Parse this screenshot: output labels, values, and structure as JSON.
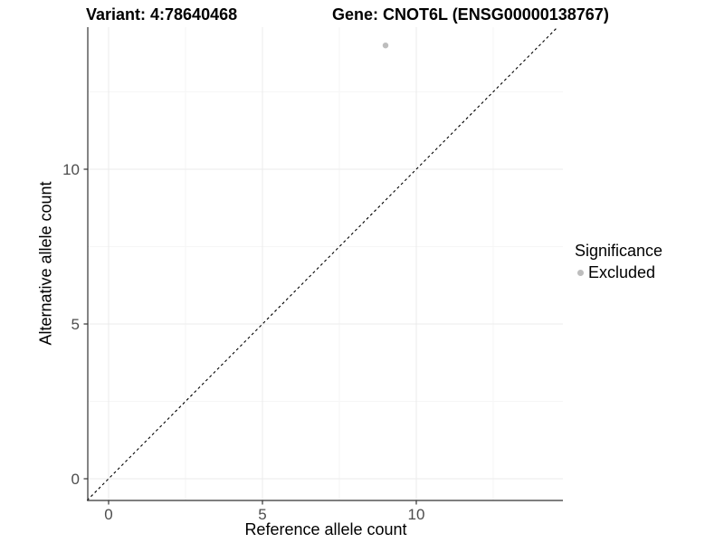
{
  "chart_data": {
    "type": "scatter",
    "title_left": "Variant: 4:78640468",
    "title_right": "Gene: CNOT6L (ENSG00000138767)",
    "xlabel": "Reference allele count",
    "ylabel": "Alternative allele count",
    "points": [
      {
        "x": 9,
        "y": 14,
        "significance": "Excluded"
      }
    ],
    "x_ticks": [
      0,
      5,
      10
    ],
    "y_ticks": [
      0,
      5,
      10
    ],
    "x_minor_ticks": [
      2.5,
      7.5,
      12.5
    ],
    "y_minor_ticks": [
      2.5,
      7.5,
      12.5
    ],
    "xlim": [
      -0.7,
      14.75
    ],
    "ylim": [
      -0.7,
      14.6
    ],
    "grid": true,
    "reference_line": {
      "type": "identity",
      "style": "dashed",
      "color": "#000000"
    },
    "legend": {
      "position": "right",
      "title": "Significance",
      "items": [
        {
          "label": "Excluded",
          "color": "#bdbdbd"
        }
      ]
    }
  },
  "colors": {
    "background": "#ffffff",
    "grid_major": "#ebebeb",
    "grid_minor": "#f6f6f6",
    "axis_line": "#333333",
    "tick_mark": "#333333",
    "tick_label": "#4d4d4d",
    "point": "#bdbdbd"
  }
}
